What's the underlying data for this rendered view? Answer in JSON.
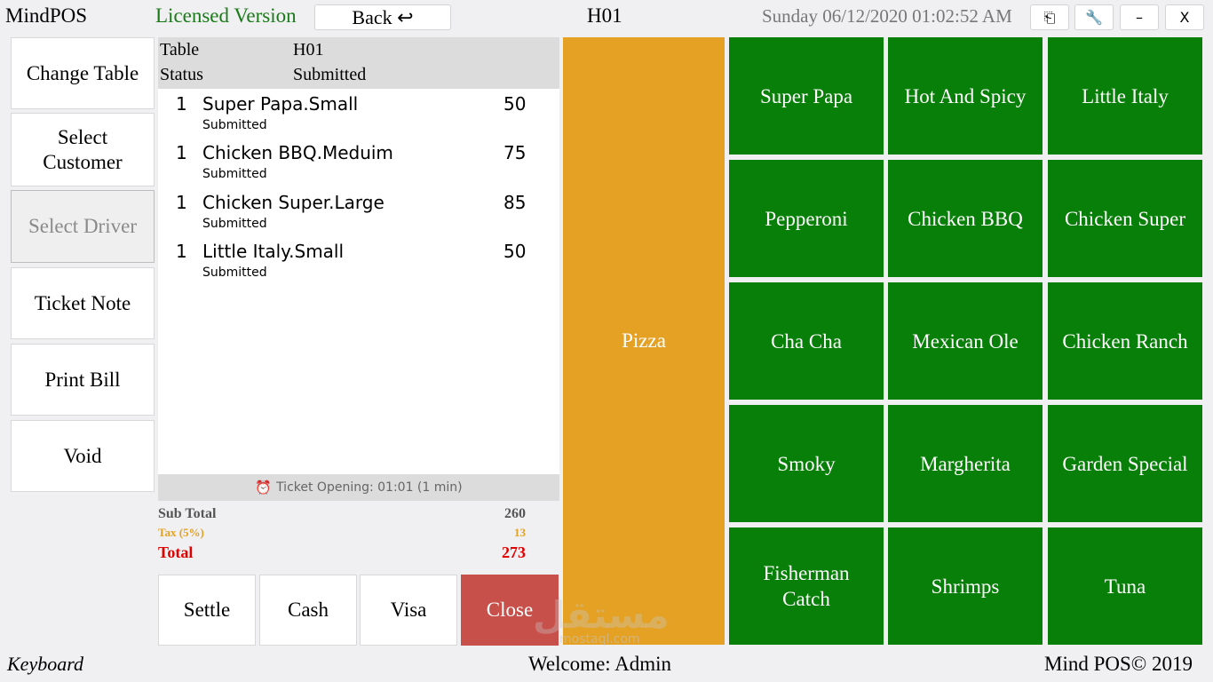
{
  "header": {
    "app_name": "MindPOS",
    "license": "Licensed Version",
    "back_label": "Back ↩",
    "table_code": "H01",
    "datetime": "Sunday 06/12/2020 01:02:52 AM",
    "window_buttons": {
      "kiosk": "⎗",
      "settings": "🔧",
      "minimize": "–",
      "close": "X"
    }
  },
  "actions": [
    {
      "label": "Change Table",
      "disabled": false
    },
    {
      "label": "Select Customer",
      "disabled": false
    },
    {
      "label": "Select Driver",
      "disabled": true
    },
    {
      "label": "Ticket Note",
      "disabled": false
    },
    {
      "label": "Print Bill",
      "disabled": false
    },
    {
      "label": "Void",
      "disabled": false
    }
  ],
  "ticket": {
    "table_label": "Table",
    "table_value": "H01",
    "status_label": "Status",
    "status_value": "Submitted",
    "items": [
      {
        "qty": "1",
        "name": "Super Papa.Small",
        "status": "Submitted",
        "price": "50"
      },
      {
        "qty": "1",
        "name": "Chicken BBQ.Meduim",
        "status": "Submitted",
        "price": "75"
      },
      {
        "qty": "1",
        "name": "Chicken Super.Large",
        "status": "Submitted",
        "price": "85"
      },
      {
        "qty": "1",
        "name": "Little Italy.Small",
        "status": "Submitted",
        "price": "50"
      }
    ],
    "opening": "Ticket Opening: 01:01 (1 min)",
    "opening_icon": "alarm-clock-icon",
    "subtotal_label": "Sub Total",
    "subtotal_value": "260",
    "tax_label": "Tax (5%)",
    "tax_value": "13",
    "total_label": "Total",
    "total_value": "273"
  },
  "payment_buttons": [
    "Settle",
    "Cash",
    "Visa",
    "Close"
  ],
  "category": "Pizza",
  "menu_items": [
    "Super Papa",
    "Hot And Spicy",
    "Little Italy",
    "Pepperoni",
    "Chicken BBQ",
    "Chicken Super",
    "Cha Cha",
    "Mexican Ole",
    "Chicken Ranch",
    "Smoky",
    "Margherita",
    "Garden Special",
    "Fisherman Catch",
    "Shrimps",
    "Tuna"
  ],
  "footer": {
    "keyboard": "Keyboard",
    "welcome": "Welcome: Admin",
    "copyright": "Mind POS© 2019"
  },
  "watermark": {
    "main": "مستقل",
    "sub": "mostaql.com"
  },
  "colors": {
    "licensed": "#1a7a1a",
    "category": "#e4a124",
    "menu_tile": "#087f08",
    "close_button": "#c8504a",
    "tax": "#e4a124",
    "total": "#e00000"
  }
}
